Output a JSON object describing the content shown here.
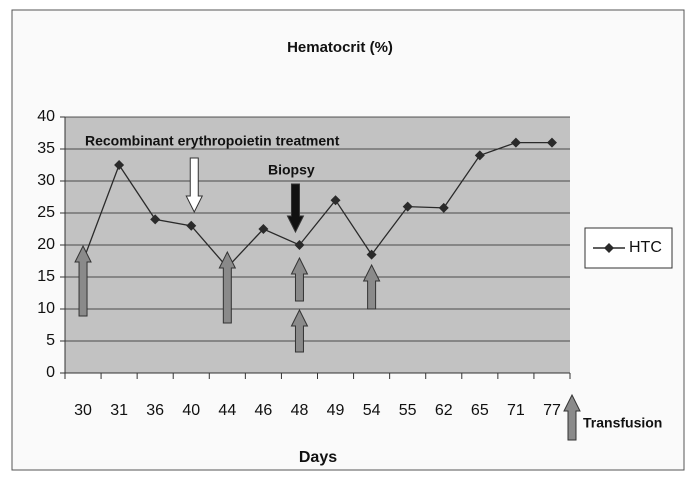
{
  "chart_data": {
    "type": "line",
    "title": "Hematocrit (%)",
    "x_label": "Days",
    "categories": [
      "30",
      "31",
      "36",
      "40",
      "44",
      "46",
      "48",
      "49",
      "54",
      "55",
      "62",
      "65",
      "71",
      "77"
    ],
    "series": [
      {
        "name": "HTC",
        "color": "#2a2a2a",
        "values": [
          17.5,
          32.5,
          24,
          23,
          16.5,
          22.5,
          20,
          27,
          18.5,
          26,
          25.8,
          34,
          36,
          36
        ]
      }
    ],
    "ylim": [
      0,
      40
    ],
    "yticks": [
      0,
      5,
      10,
      15,
      20,
      25,
      30,
      35,
      40
    ],
    "grid": true,
    "legend": "right",
    "annotations": [
      "Recombinant erythropoietin treatment",
      "Biopsy",
      "Transfusion"
    ]
  }
}
